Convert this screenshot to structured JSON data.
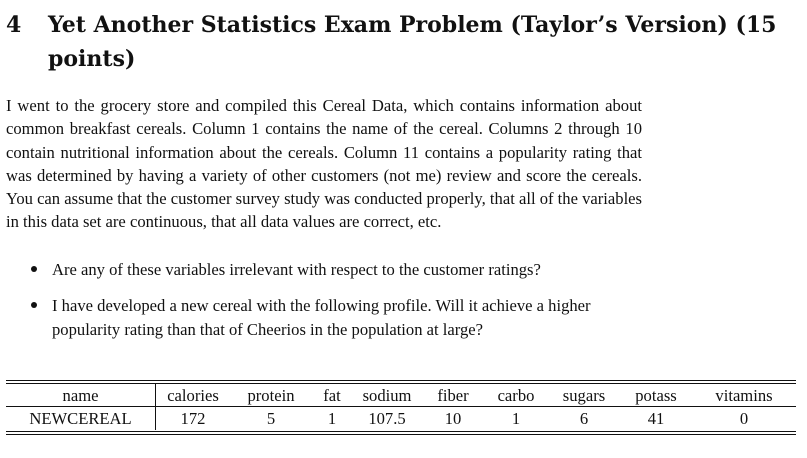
{
  "section": {
    "number": "4",
    "title": "Yet Another Statistics Exam Problem (Taylor’s Version) (15 points)"
  },
  "intro": "I went to the grocery store and compiled this Cereal Data, which contains information about common breakfast cereals. Column 1 contains the name of the cereal. Columns 2 through 10 contain nutritional information about the cereals. Column 11 contains a popularity rating that was determined by having a variety of other customers (not me) review and score the cereals. You can assume that the customer survey study was conducted properly, that all of the variables in this data set are continuous, that all data values are correct, etc.",
  "questions": [
    "Are any of these variables irrelevant with respect to the customer ratings?",
    "I have developed a new cereal with the following profile. Will it achieve a higher popularity rating than that of Cheerios in the population at large?"
  ],
  "table": {
    "headers": [
      "name",
      "calories",
      "protein",
      "fat",
      "sodium",
      "fiber",
      "carbo",
      "sugars",
      "potass",
      "vitamins"
    ],
    "row": [
      "NEWCEREAL",
      "172",
      "5",
      "1",
      "107.5",
      "10",
      "1",
      "6",
      "41",
      "0"
    ]
  }
}
